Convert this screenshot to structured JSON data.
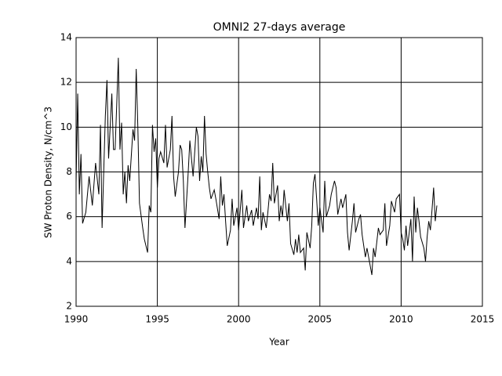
{
  "chart_data": {
    "type": "line",
    "title": "OMNI2 27-days average",
    "xlabel": "Year",
    "ylabel": "SW Proton Density, N/cm^3",
    "xlim": [
      1990,
      2015
    ],
    "xticks": [
      1990,
      1995,
      2000,
      2005,
      2010,
      2015
    ],
    "ylim": [
      2,
      14
    ],
    "yticks": [
      2,
      4,
      6,
      8,
      10,
      12,
      14
    ],
    "grid": true,
    "series": [
      {
        "name": "SW Proton Density",
        "color": "#000000",
        "x": [
          1990.0,
          1990.1,
          1990.2,
          1990.3,
          1990.4,
          1990.6,
          1990.8,
          1991.0,
          1991.2,
          1991.4,
          1991.5,
          1991.6,
          1991.8,
          1991.9,
          1992.0,
          1992.2,
          1992.3,
          1992.4,
          1992.5,
          1992.6,
          1992.7,
          1992.8,
          1992.9,
          1993.0,
          1993.1,
          1993.2,
          1993.3,
          1993.5,
          1993.6,
          1993.7,
          1993.8,
          1993.9,
          1994.1,
          1994.2,
          1994.4,
          1994.5,
          1994.6,
          1994.7,
          1994.8,
          1994.9,
          1995.0,
          1995.1,
          1995.2,
          1995.4,
          1995.5,
          1995.6,
          1995.8,
          1995.9,
          1996.0,
          1996.1,
          1996.3,
          1996.4,
          1996.5,
          1996.6,
          1996.7,
          1996.9,
          1997.0,
          1997.2,
          1997.3,
          1997.4,
          1997.5,
          1997.6,
          1997.7,
          1997.8,
          1997.9,
          1998.0,
          1998.1,
          1998.2,
          1998.3,
          1998.5,
          1998.6,
          1998.8,
          1998.9,
          1999.0,
          1999.1,
          1999.2,
          1999.3,
          1999.5,
          1999.6,
          1999.7,
          1999.9,
          2000.0,
          2000.2,
          2000.3,
          2000.5,
          2000.6,
          2000.8,
          2000.9,
          2001.1,
          2001.2,
          2001.3,
          2001.4,
          2001.5,
          2001.7,
          2001.8,
          2001.9,
          2002.0,
          2002.1,
          2002.2,
          2002.4,
          2002.5,
          2002.6,
          2002.7,
          2002.8,
          2003.0,
          2003.1,
          2003.2,
          2003.4,
          2003.5,
          2003.6,
          2003.7,
          2003.8,
          2004.0,
          2004.1,
          2004.2,
          2004.4,
          2004.5,
          2004.6,
          2004.7,
          2004.8,
          2004.9,
          2005.0,
          2005.2,
          2005.3,
          2005.4,
          2005.6,
          2005.7,
          2005.9,
          2006.0,
          2006.1,
          2006.3,
          2006.4,
          2006.6,
          2006.7,
          2006.8,
          2007.0,
          2007.1,
          2007.2,
          2007.4,
          2007.5,
          2007.6,
          2007.8,
          2007.9,
          2008.1,
          2008.2,
          2008.3,
          2008.4,
          2008.6,
          2008.7,
          2008.9,
          2009.0,
          2009.1,
          2009.3,
          2009.4,
          2009.6,
          2009.7,
          2009.9,
          2010.0,
          2010.1,
          2010.2,
          2010.3,
          2010.4,
          2010.6,
          2010.7,
          2010.8,
          2010.9,
          2011.0,
          2011.1,
          2011.2,
          2011.4,
          2011.5,
          2011.6,
          2011.7,
          2011.8,
          2011.9,
          2012.0,
          2012.1,
          2012.2
        ],
        "values": [
          7.5,
          11.5,
          7,
          8.8,
          5.7,
          6.2,
          7.8,
          6.5,
          8.4,
          7.0,
          10.1,
          5.5,
          10.5,
          12.1,
          8.6,
          11.5,
          9.0,
          9.0,
          11.0,
          13.1,
          9.0,
          10.2,
          7.0,
          8.0,
          6.6,
          8.3,
          7.6,
          9.9,
          9.4,
          12.6,
          10.0,
          6.6,
          5.5,
          5.0,
          4.4,
          6.5,
          6.2,
          10.1,
          8.9,
          9.5,
          7.3,
          8.6,
          8.9,
          8.4,
          10.1,
          8.2,
          9.0,
          10.5,
          7.8,
          6.9,
          8.0,
          9.2,
          9.0,
          7.6,
          5.5,
          8.0,
          9.4,
          7.8,
          8.9,
          10.0,
          9.6,
          7.6,
          8.7,
          8.0,
          10.5,
          8.8,
          8.0,
          7.3,
          6.8,
          7.2,
          6.8,
          5.9,
          7.8,
          6.5,
          7.0,
          5.8,
          4.7,
          5.4,
          6.8,
          5.6,
          6.4,
          5.4,
          7.2,
          5.5,
          6.5,
          5.8,
          6.3,
          5.6,
          6.4,
          5.9,
          7.8,
          5.4,
          6.2,
          5.5,
          6.2,
          7.0,
          6.7,
          8.4,
          6.6,
          7.4,
          5.8,
          6.5,
          6.0,
          7.2,
          5.8,
          6.6,
          4.8,
          4.3,
          5.0,
          4.4,
          5.2,
          4.4,
          4.6,
          3.6,
          5.3,
          4.6,
          5.6,
          7.5,
          7.9,
          6.8,
          5.6,
          6.4,
          5.3,
          7.6,
          6.0,
          6.5,
          7.0,
          7.6,
          7.3,
          6.1,
          6.8,
          6.4,
          7.0,
          5.3,
          4.5,
          5.8,
          6.6,
          5.3,
          5.9,
          6.1,
          5.2,
          4.2,
          4.6,
          3.8,
          3.4,
          4.6,
          4.2,
          5.5,
          5.2,
          5.4,
          6.6,
          4.7,
          5.6,
          6.7,
          6.2,
          6.8,
          7.0,
          5.3,
          5.0,
          4.5,
          5.6,
          4.7,
          5.9,
          4.0,
          6.9,
          5.3,
          6.4,
          5.8,
          5.1,
          4.6,
          4.0,
          5.1,
          5.8,
          5.4,
          6.3,
          7.3,
          5.8,
          6.5
        ]
      }
    ]
  }
}
